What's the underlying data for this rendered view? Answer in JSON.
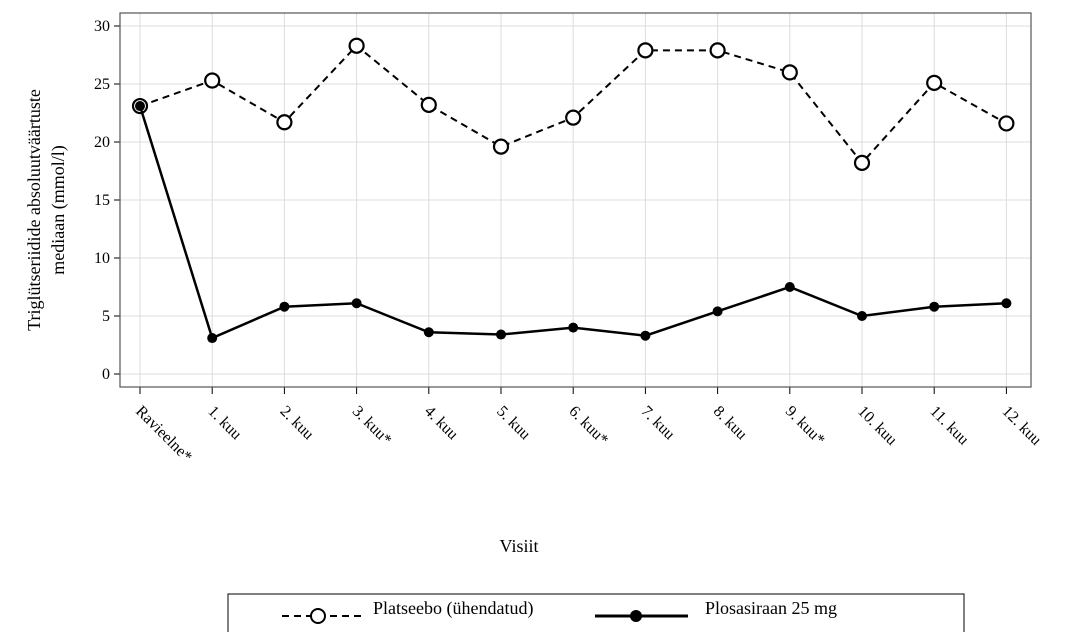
{
  "chart_data": {
    "type": "line",
    "categories": [
      "Ravieelne*",
      "1. kuu",
      "2. kuu",
      "3. kuu*",
      "4. kuu",
      "5. kuu",
      "6. kuu*",
      "7. kuu",
      "8. kuu",
      "9. kuu*",
      "10. kuu",
      "11. kuu",
      "12. kuu"
    ],
    "series": [
      {
        "name": "Platseebo (ühendatud)",
        "values": [
          23.1,
          25.3,
          21.7,
          28.3,
          23.2,
          19.6,
          22.1,
          27.9,
          27.9,
          26.0,
          18.2,
          25.1,
          21.6
        ],
        "style": "dashed",
        "marker": "open-circle",
        "color": "#000000"
      },
      {
        "name": "Plosasiraan 25 mg",
        "values": [
          23.1,
          3.1,
          5.8,
          6.1,
          3.6,
          3.4,
          4.0,
          3.3,
          5.4,
          7.5,
          5.0,
          5.8,
          6.1
        ],
        "style": "solid",
        "marker": "filled-circle",
        "color": "#000000"
      }
    ],
    "xlabel": "Visiit",
    "ylabel_lines": [
      "Triglütseriidide absoluutväärtuste",
      "mediaan (mmol/l)"
    ],
    "ylim": [
      0,
      30
    ],
    "yticks": [
      0,
      5,
      10,
      15,
      20,
      25,
      30
    ],
    "grid": true,
    "legend_position": "bottom"
  }
}
